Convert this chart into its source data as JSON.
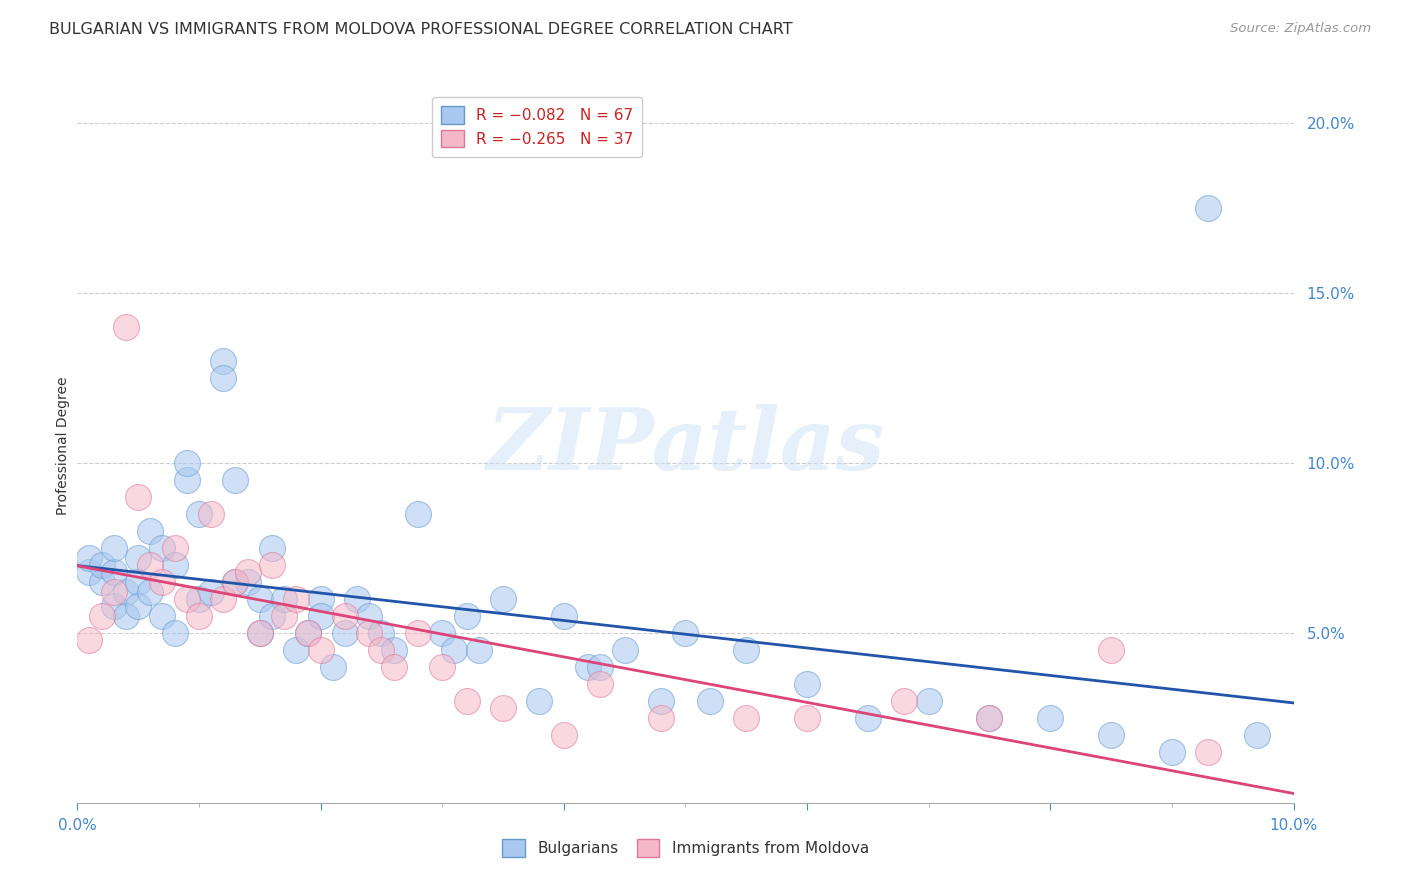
{
  "title": "BULGARIAN VS IMMIGRANTS FROM MOLDOVA PROFESSIONAL DEGREE CORRELATION CHART",
  "source": "Source: ZipAtlas.com",
  "ylabel": "Professional Degree",
  "right_yticks": [
    "20.0%",
    "15.0%",
    "10.0%",
    "5.0%"
  ],
  "right_ytick_vals": [
    0.2,
    0.15,
    0.1,
    0.05
  ],
  "bulgarian_color": "#a8c8f0",
  "moldovan_color": "#f5b8c8",
  "bulgarian_edge": "#6699cc",
  "moldovan_edge": "#dd7799",
  "trendline_bulgarian_color": "#2255aa",
  "trendline_moldovan_color": "#dd4477",
  "watermark_text": "ZIPatlas",
  "xlim": [
    0.0,
    0.1
  ],
  "ylim": [
    0.0,
    0.21
  ],
  "bulgarians_x": [
    0.001,
    0.001,
    0.002,
    0.002,
    0.003,
    0.003,
    0.003,
    0.004,
    0.004,
    0.005,
    0.005,
    0.005,
    0.006,
    0.006,
    0.007,
    0.007,
    0.008,
    0.008,
    0.009,
    0.009,
    0.01,
    0.01,
    0.011,
    0.012,
    0.012,
    0.013,
    0.013,
    0.014,
    0.015,
    0.015,
    0.016,
    0.016,
    0.017,
    0.018,
    0.019,
    0.02,
    0.02,
    0.021,
    0.022,
    0.023,
    0.024,
    0.025,
    0.026,
    0.028,
    0.03,
    0.031,
    0.032,
    0.033,
    0.035,
    0.038,
    0.04,
    0.042,
    0.043,
    0.045,
    0.048,
    0.05,
    0.052,
    0.055,
    0.06,
    0.065,
    0.07,
    0.075,
    0.08,
    0.085,
    0.09,
    0.093,
    0.097
  ],
  "bulgarians_y": [
    0.068,
    0.072,
    0.065,
    0.07,
    0.068,
    0.075,
    0.058,
    0.062,
    0.055,
    0.072,
    0.065,
    0.058,
    0.08,
    0.062,
    0.055,
    0.075,
    0.07,
    0.05,
    0.095,
    0.1,
    0.06,
    0.085,
    0.062,
    0.13,
    0.125,
    0.095,
    0.065,
    0.065,
    0.05,
    0.06,
    0.055,
    0.075,
    0.06,
    0.045,
    0.05,
    0.06,
    0.055,
    0.04,
    0.05,
    0.06,
    0.055,
    0.05,
    0.045,
    0.085,
    0.05,
    0.045,
    0.055,
    0.045,
    0.06,
    0.03,
    0.055,
    0.04,
    0.04,
    0.045,
    0.03,
    0.05,
    0.03,
    0.045,
    0.035,
    0.025,
    0.03,
    0.025,
    0.025,
    0.02,
    0.015,
    0.175,
    0.02
  ],
  "moldovans_x": [
    0.001,
    0.002,
    0.003,
    0.004,
    0.005,
    0.006,
    0.007,
    0.008,
    0.009,
    0.01,
    0.011,
    0.012,
    0.013,
    0.014,
    0.015,
    0.016,
    0.017,
    0.018,
    0.019,
    0.02,
    0.022,
    0.024,
    0.025,
    0.026,
    0.028,
    0.03,
    0.032,
    0.035,
    0.04,
    0.043,
    0.048,
    0.055,
    0.06,
    0.068,
    0.075,
    0.085,
    0.093
  ],
  "moldovans_y": [
    0.048,
    0.055,
    0.062,
    0.14,
    0.09,
    0.07,
    0.065,
    0.075,
    0.06,
    0.055,
    0.085,
    0.06,
    0.065,
    0.068,
    0.05,
    0.07,
    0.055,
    0.06,
    0.05,
    0.045,
    0.055,
    0.05,
    0.045,
    0.04,
    0.05,
    0.04,
    0.03,
    0.028,
    0.02,
    0.035,
    0.025,
    0.025,
    0.025,
    0.03,
    0.025,
    0.045,
    0.015
  ],
  "title_fontsize": 11.5,
  "source_fontsize": 9.5,
  "ylabel_fontsize": 10
}
